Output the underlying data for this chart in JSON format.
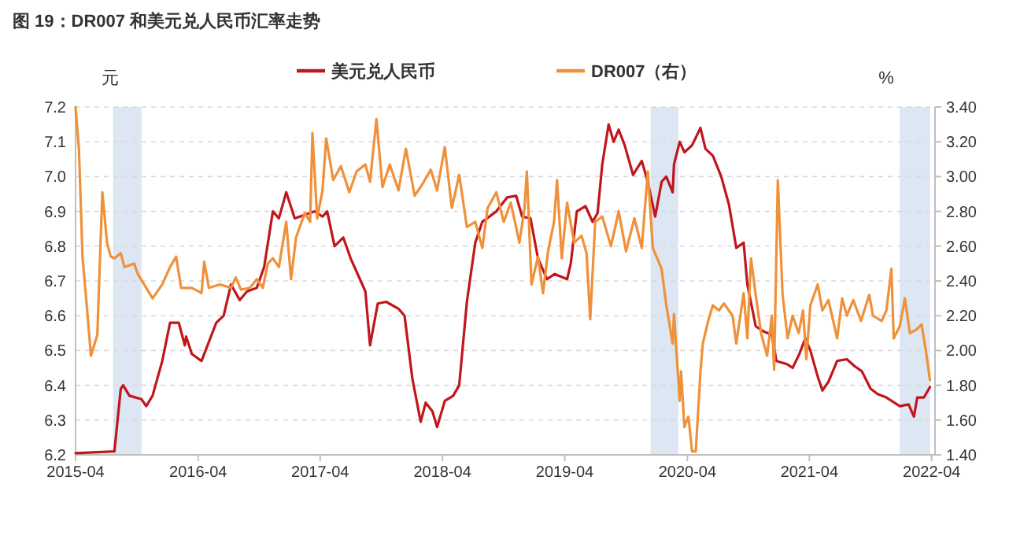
{
  "chart_data": {
    "type": "line",
    "title": "图 19：DR007 和美元兑人民币汇率走势",
    "ylabel": "元",
    "y2label": "%",
    "xlim": [
      "2015-04-01",
      "2022-04-11"
    ],
    "xticks": [
      "2015-04",
      "2016-04",
      "2017-04",
      "2018-04",
      "2019-04",
      "2020-04",
      "2021-04",
      "2022-04"
    ],
    "ylim": [
      6.2,
      7.2
    ],
    "yticks": [
      6.2,
      6.3,
      6.4,
      6.5,
      6.6,
      6.7,
      6.8,
      6.9,
      {
        "value": 7,
        "label": "7.0"
      },
      7.1,
      7.2
    ],
    "y2lim": [
      1.4,
      3.4
    ],
    "y2ticks": [
      {
        "value": 1.4,
        "label": "1.40"
      },
      {
        "value": 1.6,
        "label": "1.60"
      },
      {
        "value": 1.8,
        "label": "1.80"
      },
      {
        "value": 2,
        "label": "2.00"
      },
      {
        "value": 2.2,
        "label": "2.20"
      },
      {
        "value": 2.4,
        "label": "2.40"
      },
      {
        "value": 2.6,
        "label": "2.60"
      },
      {
        "value": 2.8,
        "label": "2.80"
      },
      {
        "value": 3,
        "label": "3.00"
      },
      {
        "value": 3.2,
        "label": "3.20"
      },
      {
        "value": 3.4,
        "label": "3.40"
      }
    ],
    "bands": [
      {
        "axis": "x",
        "from": "2015-07-22",
        "to": "2015-10-15",
        "color": "#dde6f3"
      },
      {
        "axis": "x",
        "from": "2019-12-13",
        "to": "2020-03-05",
        "color": "#dde6f3"
      },
      {
        "axis": "x",
        "from": "2021-12-27",
        "to": "2022-03-27",
        "color": "#dde6f3"
      }
    ],
    "grid": "y",
    "legend": "top",
    "series": [
      {
        "name": "美元兑人民币",
        "color": "#c0161c",
        "x": [
          "2015-04-01",
          "2015-07-26",
          "2015-08-14",
          "2015-08-21",
          "2015-09-09",
          "2015-10-15",
          "2015-10-29",
          "2015-11-17",
          "2015-12-16",
          "2016-01-08",
          "2016-02-03",
          "2016-02-21",
          "2016-02-25",
          "2016-03-13",
          "2016-04-11",
          "2016-05-25",
          "2016-06-16",
          "2016-07-08",
          "2016-08-03",
          "2016-08-25",
          "2016-09-23",
          "2016-10-15",
          "2016-11-10",
          "2016-11-28",
          "2016-12-20",
          "2017-01-15",
          "2017-03-16",
          "2017-04-08",
          "2017-04-22",
          "2017-05-14",
          "2017-06-09",
          "2017-07-01",
          "2017-08-14",
          "2017-08-28",
          "2017-09-20",
          "2017-10-15",
          "2017-11-21",
          "2017-12-09",
          "2018-01-01",
          "2018-01-26",
          "2018-02-10",
          "2018-03-02",
          "2018-03-16",
          "2018-04-08",
          "2018-05-03",
          "2018-05-21",
          "2018-06-13",
          "2018-07-08",
          "2018-07-29",
          "2018-09-09",
          "2018-10-11",
          "2018-11-07",
          "2018-11-25",
          "2018-12-20",
          "2019-01-11",
          "2019-02-07",
          "2019-03-02",
          "2019-04-08",
          "2019-04-19",
          "2019-05-07",
          "2019-06-02",
          "2019-06-23",
          "2019-07-08",
          "2019-07-22",
          "2019-08-10",
          "2019-08-25",
          "2019-09-09",
          "2019-09-27",
          "2019-10-22",
          "2019-11-17",
          "2019-12-05",
          "2019-12-27",
          "2020-01-15",
          "2020-01-29",
          "2020-02-17",
          "2020-02-21",
          "2020-03-09",
          "2020-03-23",
          "2020-04-15",
          "2020-05-10",
          "2020-05-25",
          "2020-06-16",
          "2020-07-11",
          "2020-08-03",
          "2020-08-25",
          "2020-09-16",
          "2020-09-27",
          "2020-10-22",
          "2020-11-14",
          "2020-12-09",
          "2020-12-23",
          "2021-01-26",
          "2021-02-10",
          "2021-03-02",
          "2021-03-20",
          "2021-04-04",
          "2021-04-26",
          "2021-05-10",
          "2021-05-28",
          "2021-06-23",
          "2021-07-22",
          "2021-08-14",
          "2021-09-05",
          "2021-10-01",
          "2021-10-22",
          "2021-11-17",
          "2021-12-27",
          "2022-01-22",
          "2022-02-07",
          "2022-02-17",
          "2022-03-09",
          "2022-03-27"
        ],
        "values": [
          6.205,
          6.21,
          6.39,
          6.4,
          6.37,
          6.36,
          6.34,
          6.37,
          6.47,
          6.58,
          6.58,
          6.515,
          6.54,
          6.49,
          6.47,
          6.58,
          6.6,
          6.69,
          6.645,
          6.67,
          6.68,
          6.74,
          6.9,
          6.88,
          6.955,
          6.88,
          6.9,
          6.885,
          6.9,
          6.8,
          6.825,
          6.765,
          6.67,
          6.515,
          6.635,
          6.64,
          6.62,
          6.6,
          6.42,
          6.295,
          6.35,
          6.325,
          6.28,
          6.355,
          6.37,
          6.4,
          6.64,
          6.81,
          6.87,
          6.9,
          6.94,
          6.945,
          6.885,
          6.88,
          6.765,
          6.705,
          6.72,
          6.705,
          6.75,
          6.9,
          6.915,
          6.87,
          6.895,
          7.035,
          7.15,
          7.1,
          7.135,
          7.09,
          7.005,
          7.045,
          6.985,
          6.885,
          6.985,
          7.0,
          6.955,
          7.035,
          7.1,
          7.07,
          7.09,
          7.14,
          7.08,
          7.06,
          7.0,
          6.92,
          6.795,
          6.81,
          6.69,
          6.57,
          6.555,
          6.545,
          6.47,
          6.46,
          6.45,
          6.49,
          6.535,
          6.5,
          6.425,
          6.385,
          6.41,
          6.47,
          6.475,
          6.455,
          6.44,
          6.39,
          6.375,
          6.365,
          6.34,
          6.345,
          6.31,
          6.365,
          6.365,
          6.395
        ]
      },
      {
        "name": "DR007（右）",
        "color": "#f0913a",
        "axis": "y2",
        "x": [
          "2015-04-01",
          "2015-04-11",
          "2015-04-22",
          "2015-04-29",
          "2015-05-17",
          "2015-06-05",
          "2015-06-20",
          "2015-07-04",
          "2015-07-15",
          "2015-07-26",
          "2015-08-14",
          "2015-08-25",
          "2015-09-23",
          "2015-10-04",
          "2015-10-29",
          "2015-11-17",
          "2015-12-16",
          "2016-01-08",
          "2016-01-26",
          "2016-02-10",
          "2016-03-13",
          "2016-04-11",
          "2016-04-19",
          "2016-05-03",
          "2016-06-05",
          "2016-07-08",
          "2016-07-22",
          "2016-08-07",
          "2016-09-02",
          "2016-09-23",
          "2016-10-11",
          "2016-10-26",
          "2016-11-10",
          "2016-11-28",
          "2016-12-20",
          "2017-01-04",
          "2017-01-19",
          "2017-02-14",
          "2017-03-02",
          "2017-03-09",
          "2017-03-23",
          "2017-04-08",
          "2017-04-19",
          "2017-05-10",
          "2017-06-02",
          "2017-06-27",
          "2017-07-19",
          "2017-08-14",
          "2017-08-28",
          "2017-09-16",
          "2017-10-04",
          "2017-10-26",
          "2017-11-21",
          "2017-12-13",
          "2018-01-08",
          "2018-01-29",
          "2018-02-25",
          "2018-03-16",
          "2018-04-08",
          "2018-04-29",
          "2018-05-21",
          "2018-06-13",
          "2018-07-08",
          "2018-07-29",
          "2018-08-14",
          "2018-09-09",
          "2018-10-01",
          "2018-10-22",
          "2018-11-17",
          "2018-12-02",
          "2018-12-09",
          "2018-12-23",
          "2019-01-11",
          "2019-01-26",
          "2019-02-10",
          "2019-02-28",
          "2019-03-09",
          "2019-03-23",
          "2019-04-08",
          "2019-04-29",
          "2019-05-21",
          "2019-06-05",
          "2019-06-16",
          "2019-07-01",
          "2019-07-22",
          "2019-08-17",
          "2019-09-09",
          "2019-10-01",
          "2019-10-26",
          "2019-11-17",
          "2019-12-05",
          "2019-12-20",
          "2020-01-15",
          "2020-01-29",
          "2020-02-17",
          "2020-02-21",
          "2020-03-09",
          "2020-03-13",
          "2020-03-23",
          "2020-04-04",
          "2020-04-15",
          "2020-04-26",
          "2020-05-10",
          "2020-05-17",
          "2020-06-02",
          "2020-06-16",
          "2020-07-04",
          "2020-07-19",
          "2020-08-14",
          "2020-08-25",
          "2020-09-16",
          "2020-09-27",
          "2020-10-08",
          "2020-10-22",
          "2020-11-07",
          "2020-11-25",
          "2020-12-09",
          "2020-12-16",
          "2020-12-27",
          "2021-01-11",
          "2021-01-26",
          "2021-02-10",
          "2021-02-28",
          "2021-03-13",
          "2021-03-23",
          "2021-04-04",
          "2021-04-26",
          "2021-05-10",
          "2021-05-28",
          "2021-06-23",
          "2021-07-08",
          "2021-07-22",
          "2021-08-10",
          "2021-09-02",
          "2021-09-27",
          "2021-10-08",
          "2021-11-03",
          "2021-11-17",
          "2021-12-02",
          "2021-12-09",
          "2021-12-27",
          "2022-01-11",
          "2022-01-26",
          "2022-02-14",
          "2022-03-02",
          "2022-03-16",
          "2022-03-27"
        ],
        "values": [
          3.4,
          3.16,
          2.53,
          2.38,
          1.97,
          2.09,
          2.91,
          2.62,
          2.54,
          2.53,
          2.56,
          2.48,
          2.5,
          2.44,
          2.36,
          2.3,
          2.38,
          2.48,
          2.54,
          2.36,
          2.36,
          2.33,
          2.51,
          2.36,
          2.38,
          2.36,
          2.42,
          2.35,
          2.36,
          2.41,
          2.36,
          2.5,
          2.53,
          2.48,
          2.74,
          2.41,
          2.65,
          2.79,
          2.74,
          3.25,
          2.76,
          2.92,
          3.22,
          2.98,
          3.06,
          2.91,
          3.03,
          3.07,
          2.97,
          3.33,
          2.94,
          3.07,
          2.92,
          3.16,
          2.89,
          2.95,
          3.04,
          2.92,
          3.17,
          2.82,
          3.01,
          2.71,
          2.74,
          2.59,
          2.82,
          2.91,
          2.74,
          2.85,
          2.62,
          2.82,
          3.03,
          2.38,
          2.54,
          2.33,
          2.57,
          2.74,
          2.98,
          2.53,
          2.85,
          2.62,
          2.66,
          2.56,
          2.18,
          2.74,
          2.77,
          2.6,
          2.8,
          2.57,
          2.76,
          2.59,
          3.03,
          2.59,
          2.47,
          2.26,
          2.04,
          2.21,
          1.71,
          1.88,
          1.56,
          1.62,
          1.42,
          1.42,
          1.88,
          2.04,
          2.17,
          2.26,
          2.23,
          2.27,
          2.2,
          2.04,
          2.33,
          2.07,
          2.53,
          2.32,
          2.1,
          1.97,
          2.2,
          1.89,
          2.98,
          2.32,
          2.07,
          2.2,
          2.1,
          2.23,
          1.95,
          2.26,
          2.38,
          2.23,
          2.29,
          2.07,
          2.3,
          2.2,
          2.29,
          2.17,
          2.32,
          2.2,
          2.17,
          2.23,
          2.47,
          2.07,
          2.14,
          2.3,
          2.1,
          2.12,
          2.15,
          1.98,
          1.83
        ]
      }
    ]
  }
}
